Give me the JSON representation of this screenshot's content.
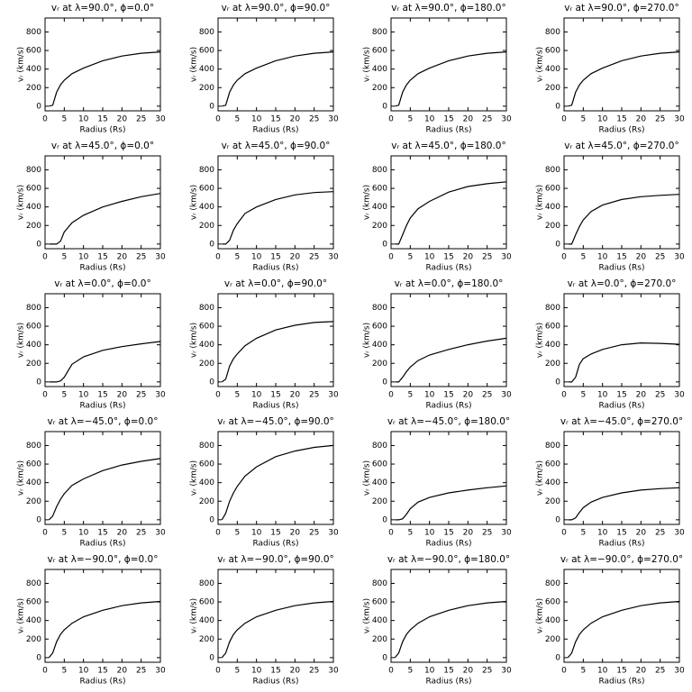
{
  "chart_data": [
    {
      "type": "line",
      "title": "vᵣ at λ=90.0°, ϕ=0.0°",
      "xlabel": "Radius (Rs)",
      "ylabel": "vᵣ (km/s)",
      "x": [
        1,
        2,
        3,
        4,
        5,
        7,
        10,
        15,
        20,
        25,
        30
      ],
      "values": [
        0,
        10,
        150,
        230,
        280,
        350,
        410,
        490,
        540,
        570,
        585
      ],
      "color": "#000000",
      "xlim": [
        0,
        30
      ],
      "ylim": [
        -50,
        950
      ],
      "xticks": [
        0,
        5,
        10,
        15,
        20,
        25,
        30
      ],
      "yticks": [
        0,
        200,
        400,
        600,
        800
      ]
    },
    {
      "type": "line",
      "title": "vᵣ at λ=90.0°, ϕ=90.0°",
      "xlabel": "Radius (Rs)",
      "ylabel": "vᵣ (km/s)",
      "x": [
        1,
        2,
        3,
        4,
        5,
        7,
        10,
        15,
        20,
        25,
        30
      ],
      "values": [
        0,
        10,
        150,
        230,
        280,
        350,
        410,
        490,
        540,
        570,
        585
      ],
      "color": "#000000",
      "xlim": [
        0,
        30
      ],
      "ylim": [
        -50,
        950
      ],
      "xticks": [
        0,
        5,
        10,
        15,
        20,
        25,
        30
      ],
      "yticks": [
        0,
        200,
        400,
        600,
        800
      ]
    },
    {
      "type": "line",
      "title": "vᵣ at λ=90.0°, ϕ=180.0°",
      "xlabel": "Radius (Rs)",
      "ylabel": "vᵣ (km/s)",
      "x": [
        1,
        2,
        3,
        4,
        5,
        7,
        10,
        15,
        20,
        25,
        30
      ],
      "values": [
        0,
        10,
        150,
        230,
        280,
        350,
        410,
        490,
        540,
        570,
        585
      ],
      "color": "#000000",
      "xlim": [
        0,
        30
      ],
      "ylim": [
        -50,
        950
      ],
      "xticks": [
        0,
        5,
        10,
        15,
        20,
        25,
        30
      ],
      "yticks": [
        0,
        200,
        400,
        600,
        800
      ]
    },
    {
      "type": "line",
      "title": "vᵣ at λ=90.0°, ϕ=270.0°",
      "xlabel": "Radius (Rs)",
      "ylabel": "vᵣ (km/s)",
      "x": [
        1,
        2,
        3,
        4,
        5,
        7,
        10,
        15,
        20,
        25,
        30
      ],
      "values": [
        0,
        10,
        150,
        230,
        280,
        350,
        410,
        490,
        540,
        570,
        585
      ],
      "color": "#000000",
      "xlim": [
        0,
        30
      ],
      "ylim": [
        -50,
        950
      ],
      "xticks": [
        0,
        5,
        10,
        15,
        20,
        25,
        30
      ],
      "yticks": [
        0,
        200,
        400,
        600,
        800
      ]
    },
    {
      "type": "line",
      "title": "vᵣ at λ=45.0°, ϕ=0.0°",
      "xlabel": "Radius (Rs)",
      "ylabel": "vᵣ (km/s)",
      "x": [
        1,
        2,
        3,
        4,
        5,
        7,
        10,
        15,
        20,
        25,
        30
      ],
      "values": [
        0,
        0,
        0,
        30,
        130,
        230,
        310,
        400,
        460,
        510,
        545
      ],
      "color": "#000000",
      "xlim": [
        0,
        30
      ],
      "ylim": [
        -50,
        950
      ],
      "xticks": [
        0,
        5,
        10,
        15,
        20,
        25,
        30
      ],
      "yticks": [
        0,
        200,
        400,
        600,
        800
      ]
    },
    {
      "type": "line",
      "title": "vᵣ at λ=45.0°, ϕ=90.0°",
      "xlabel": "Radius (Rs)",
      "ylabel": "vᵣ (km/s)",
      "x": [
        1,
        2,
        3,
        4,
        5,
        7,
        10,
        15,
        20,
        25,
        30
      ],
      "values": [
        0,
        0,
        40,
        150,
        220,
        330,
        400,
        480,
        530,
        555,
        565
      ],
      "color": "#000000",
      "xlim": [
        0,
        30
      ],
      "ylim": [
        -50,
        950
      ],
      "xticks": [
        0,
        5,
        10,
        15,
        20,
        25,
        30
      ],
      "yticks": [
        0,
        200,
        400,
        600,
        800
      ]
    },
    {
      "type": "line",
      "title": "vᵣ at λ=45.0°, ϕ=180.0°",
      "xlabel": "Radius (Rs)",
      "ylabel": "vᵣ (km/s)",
      "x": [
        1,
        2,
        3,
        4,
        5,
        7,
        10,
        15,
        20,
        25,
        30
      ],
      "values": [
        0,
        0,
        100,
        200,
        280,
        380,
        460,
        560,
        620,
        650,
        670
      ],
      "color": "#000000",
      "xlim": [
        0,
        30
      ],
      "ylim": [
        -50,
        950
      ],
      "xticks": [
        0,
        5,
        10,
        15,
        20,
        25,
        30
      ],
      "yticks": [
        0,
        200,
        400,
        600,
        800
      ]
    },
    {
      "type": "line",
      "title": "vᵣ at λ=45.0°, ϕ=270.0°",
      "xlabel": "Radius (Rs)",
      "ylabel": "vᵣ (km/s)",
      "x": [
        1,
        2,
        3,
        4,
        5,
        7,
        10,
        15,
        20,
        25,
        30
      ],
      "values": [
        0,
        0,
        100,
        190,
        260,
        350,
        420,
        480,
        510,
        525,
        535
      ],
      "color": "#000000",
      "xlim": [
        0,
        30
      ],
      "ylim": [
        -50,
        950
      ],
      "xticks": [
        0,
        5,
        10,
        15,
        20,
        25,
        30
      ],
      "yticks": [
        0,
        200,
        400,
        600,
        800
      ]
    },
    {
      "type": "line",
      "title": "vᵣ at λ=0.0°, ϕ=0.0°",
      "xlabel": "Radius (Rs)",
      "ylabel": "vᵣ (km/s)",
      "x": [
        1,
        2,
        3,
        4,
        5,
        7,
        10,
        15,
        20,
        25,
        30
      ],
      "values": [
        0,
        0,
        0,
        10,
        50,
        190,
        270,
        340,
        380,
        410,
        435
      ],
      "color": "#000000",
      "xlim": [
        0,
        30
      ],
      "ylim": [
        -50,
        950
      ],
      "xticks": [
        0,
        5,
        10,
        15,
        20,
        25,
        30
      ],
      "yticks": [
        0,
        200,
        400,
        600,
        800
      ]
    },
    {
      "type": "line",
      "title": "vᵣ at λ=0.0°, ϕ=90.0°",
      "xlabel": "Radius (Rs)",
      "ylabel": "vᵣ (km/s)",
      "x": [
        1,
        2,
        3,
        4,
        5,
        7,
        10,
        15,
        20,
        25,
        30
      ],
      "values": [
        0,
        30,
        170,
        250,
        300,
        390,
        470,
        560,
        610,
        640,
        650
      ],
      "color": "#000000",
      "xlim": [
        0,
        30
      ],
      "ylim": [
        -50,
        950
      ],
      "xticks": [
        0,
        5,
        10,
        15,
        20,
        25,
        30
      ],
      "yticks": [
        0,
        200,
        400,
        600,
        800
      ]
    },
    {
      "type": "line",
      "title": "vᵣ at λ=0.0°, ϕ=180.0°",
      "xlabel": "Radius (Rs)",
      "ylabel": "vᵣ (km/s)",
      "x": [
        1,
        2,
        3,
        4,
        5,
        7,
        10,
        15,
        20,
        25,
        30
      ],
      "values": [
        0,
        0,
        50,
        110,
        160,
        230,
        290,
        350,
        400,
        440,
        470
      ],
      "color": "#000000",
      "xlim": [
        0,
        30
      ],
      "ylim": [
        -50,
        950
      ],
      "xticks": [
        0,
        5,
        10,
        15,
        20,
        25,
        30
      ],
      "yticks": [
        0,
        200,
        400,
        600,
        800
      ]
    },
    {
      "type": "line",
      "title": "vᵣ at λ=0.0°, ϕ=270.0°",
      "xlabel": "Radius (Rs)",
      "ylabel": "vᵣ (km/s)",
      "x": [
        1,
        2,
        3,
        4,
        5,
        7,
        10,
        15,
        20,
        25,
        30
      ],
      "values": [
        0,
        0,
        50,
        190,
        250,
        300,
        350,
        400,
        420,
        415,
        405
      ],
      "color": "#000000",
      "xlim": [
        0,
        30
      ],
      "ylim": [
        -50,
        950
      ],
      "xticks": [
        0,
        5,
        10,
        15,
        20,
        25,
        30
      ],
      "yticks": [
        0,
        200,
        400,
        600,
        800
      ]
    },
    {
      "type": "line",
      "title": "vᵣ at λ=−45.0°, ϕ=0.0°",
      "xlabel": "Radius (Rs)",
      "ylabel": "vᵣ (km/s)",
      "x": [
        1,
        2,
        3,
        4,
        5,
        7,
        10,
        15,
        20,
        25,
        30
      ],
      "values": [
        0,
        40,
        140,
        220,
        280,
        370,
        440,
        530,
        590,
        630,
        660
      ],
      "color": "#000000",
      "xlim": [
        0,
        30
      ],
      "ylim": [
        -50,
        950
      ],
      "xticks": [
        0,
        5,
        10,
        15,
        20,
        25,
        30
      ],
      "yticks": [
        0,
        200,
        400,
        600,
        800
      ]
    },
    {
      "type": "line",
      "title": "vᵣ at λ=−45.0°, ϕ=90.0°",
      "xlabel": "Radius (Rs)",
      "ylabel": "vᵣ (km/s)",
      "x": [
        1,
        2,
        3,
        4,
        5,
        7,
        10,
        15,
        20,
        25,
        30
      ],
      "values": [
        0,
        70,
        200,
        290,
        360,
        470,
        570,
        680,
        740,
        780,
        800
      ],
      "color": "#000000",
      "xlim": [
        0,
        30
      ],
      "ylim": [
        -50,
        950
      ],
      "xticks": [
        0,
        5,
        10,
        15,
        20,
        25,
        30
      ],
      "yticks": [
        0,
        200,
        400,
        600,
        800
      ]
    },
    {
      "type": "line",
      "title": "vᵣ at λ=−45.0°, ϕ=180.0°",
      "xlabel": "Radius (Rs)",
      "ylabel": "vᵣ (km/s)",
      "x": [
        1,
        2,
        3,
        4,
        5,
        7,
        10,
        15,
        20,
        25,
        30
      ],
      "values": [
        0,
        0,
        10,
        60,
        120,
        190,
        240,
        290,
        320,
        345,
        365
      ],
      "color": "#000000",
      "xlim": [
        0,
        30
      ],
      "ylim": [
        -50,
        950
      ],
      "xticks": [
        0,
        5,
        10,
        15,
        20,
        25,
        30
      ],
      "yticks": [
        0,
        200,
        400,
        600,
        800
      ]
    },
    {
      "type": "line",
      "title": "vᵣ at λ=−45.0°, ϕ=270.0°",
      "xlabel": "Radius (Rs)",
      "ylabel": "vᵣ (km/s)",
      "x": [
        1,
        2,
        3,
        4,
        5,
        7,
        10,
        15,
        20,
        25,
        30
      ],
      "values": [
        0,
        0,
        20,
        80,
        130,
        190,
        240,
        290,
        320,
        335,
        345
      ],
      "color": "#000000",
      "xlim": [
        0,
        30
      ],
      "ylim": [
        -50,
        950
      ],
      "xticks": [
        0,
        5,
        10,
        15,
        20,
        25,
        30
      ],
      "yticks": [
        0,
        200,
        400,
        600,
        800
      ]
    },
    {
      "type": "line",
      "title": "vᵣ at λ=−90.0°, ϕ=0.0°",
      "xlabel": "Radius (Rs)",
      "ylabel": "vᵣ (km/s)",
      "x": [
        1,
        2,
        3,
        4,
        5,
        7,
        10,
        15,
        20,
        25,
        30
      ],
      "values": [
        0,
        50,
        170,
        250,
        300,
        370,
        440,
        510,
        560,
        590,
        605
      ],
      "color": "#000000",
      "xlim": [
        0,
        30
      ],
      "ylim": [
        -50,
        950
      ],
      "xticks": [
        0,
        5,
        10,
        15,
        20,
        25,
        30
      ],
      "yticks": [
        0,
        200,
        400,
        600,
        800
      ]
    },
    {
      "type": "line",
      "title": "vᵣ at λ=−90.0°, ϕ=90.0°",
      "xlabel": "Radius (Rs)",
      "ylabel": "vᵣ (km/s)",
      "x": [
        1,
        2,
        3,
        4,
        5,
        7,
        10,
        15,
        20,
        25,
        30
      ],
      "values": [
        0,
        50,
        170,
        250,
        300,
        370,
        440,
        510,
        560,
        590,
        605
      ],
      "color": "#000000",
      "xlim": [
        0,
        30
      ],
      "ylim": [
        -50,
        950
      ],
      "xticks": [
        0,
        5,
        10,
        15,
        20,
        25,
        30
      ],
      "yticks": [
        0,
        200,
        400,
        600,
        800
      ]
    },
    {
      "type": "line",
      "title": "vᵣ at λ=−90.0°, ϕ=180.0°",
      "xlabel": "Radius (Rs)",
      "ylabel": "vᵣ (km/s)",
      "x": [
        1,
        2,
        3,
        4,
        5,
        7,
        10,
        15,
        20,
        25,
        30
      ],
      "values": [
        0,
        50,
        170,
        250,
        300,
        370,
        440,
        510,
        560,
        590,
        605
      ],
      "color": "#000000",
      "xlim": [
        0,
        30
      ],
      "ylim": [
        -50,
        950
      ],
      "xticks": [
        0,
        5,
        10,
        15,
        20,
        25,
        30
      ],
      "yticks": [
        0,
        200,
        400,
        600,
        800
      ]
    },
    {
      "type": "line",
      "title": "vᵣ at λ=−90.0°, ϕ=270.0°",
      "xlabel": "Radius (Rs)",
      "ylabel": "vᵣ (km/s)",
      "x": [
        1,
        2,
        3,
        4,
        5,
        7,
        10,
        15,
        20,
        25,
        30
      ],
      "values": [
        0,
        50,
        170,
        250,
        300,
        370,
        440,
        510,
        560,
        590,
        605
      ],
      "color": "#000000",
      "xlim": [
        0,
        30
      ],
      "ylim": [
        -50,
        950
      ],
      "xticks": [
        0,
        5,
        10,
        15,
        20,
        25,
        30
      ],
      "yticks": [
        0,
        200,
        400,
        600,
        800
      ]
    }
  ]
}
